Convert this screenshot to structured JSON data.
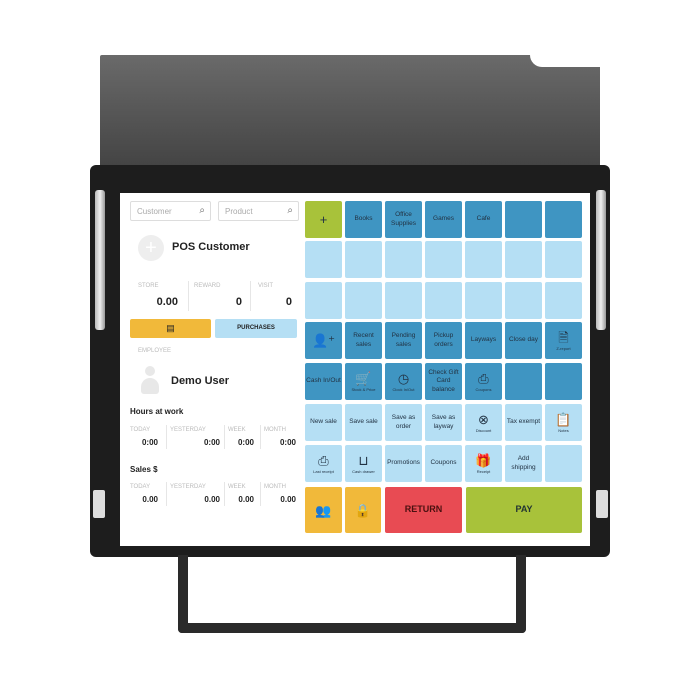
{
  "customer_search": {
    "placeholder": "Customer",
    "icon": "search-icon"
  },
  "product_search": {
    "placeholder": "Product",
    "icon": "search-icon"
  },
  "customer": {
    "name": "POS Customer",
    "store_label": "STORE",
    "store": "0.00",
    "reward_label": "REWARD",
    "reward": "0",
    "visit_label": "VISIT",
    "visit": "0",
    "card_icon": "id-card-icon",
    "purchases": "PURCHASES"
  },
  "employee": {
    "label": "EMPLOYEE",
    "name": "Demo User"
  },
  "hours": {
    "title": "Hours at work",
    "cols": [
      {
        "label": "TODAY",
        "value": "0:00"
      },
      {
        "label": "YESTERDAY",
        "value": "0:00"
      },
      {
        "label": "WEEK",
        "value": "0:00"
      },
      {
        "label": "MONTH",
        "value": "0:00"
      }
    ]
  },
  "sales": {
    "title": "Sales $",
    "cols": [
      {
        "label": "TODAY",
        "value": "0.00"
      },
      {
        "label": "YESTERDAY",
        "value": "0.00"
      },
      {
        "label": "WEEK",
        "value": "0.00"
      },
      {
        "label": "MONTH",
        "value": "0.00"
      }
    ]
  },
  "tiles": [
    {
      "row": 0,
      "col": 0,
      "c": "gr",
      "glyph": "+",
      "icon": "plus-icon"
    },
    {
      "row": 0,
      "col": 1,
      "c": "dk",
      "label": "Books"
    },
    {
      "row": 0,
      "col": 2,
      "c": "dk",
      "label": "Office Supplies"
    },
    {
      "row": 0,
      "col": 3,
      "c": "dk",
      "label": "Games"
    },
    {
      "row": 0,
      "col": 4,
      "c": "dk",
      "label": "Cafe"
    },
    {
      "row": 0,
      "col": 5,
      "c": "dk"
    },
    {
      "row": 0,
      "col": 6,
      "c": "dk"
    },
    {
      "row": 1,
      "col": 0,
      "c": "lt"
    },
    {
      "row": 1,
      "col": 1,
      "c": "lt"
    },
    {
      "row": 1,
      "col": 2,
      "c": "lt"
    },
    {
      "row": 1,
      "col": 3,
      "c": "lt"
    },
    {
      "row": 1,
      "col": 4,
      "c": "lt"
    },
    {
      "row": 1,
      "col": 5,
      "c": "lt"
    },
    {
      "row": 1,
      "col": 6,
      "c": "lt"
    },
    {
      "row": 2,
      "col": 0,
      "c": "lt"
    },
    {
      "row": 2,
      "col": 1,
      "c": "lt"
    },
    {
      "row": 2,
      "col": 2,
      "c": "lt"
    },
    {
      "row": 2,
      "col": 3,
      "c": "lt"
    },
    {
      "row": 2,
      "col": 4,
      "c": "lt"
    },
    {
      "row": 2,
      "col": 5,
      "c": "lt"
    },
    {
      "row": 2,
      "col": 6,
      "c": "lt"
    },
    {
      "row": 3,
      "col": 0,
      "c": "dk",
      "glyph": "👤⁺",
      "icon": "add-customer-icon"
    },
    {
      "row": 3,
      "col": 1,
      "c": "dk",
      "label": "Recent sales"
    },
    {
      "row": 3,
      "col": 2,
      "c": "dk",
      "label": "Pending sales"
    },
    {
      "row": 3,
      "col": 3,
      "c": "dk",
      "label": "Pickup orders"
    },
    {
      "row": 3,
      "col": 4,
      "c": "dk",
      "label": "Layways"
    },
    {
      "row": 3,
      "col": 5,
      "c": "dk",
      "label": "Close day"
    },
    {
      "row": 3,
      "col": 6,
      "c": "dk",
      "glyph": "🗎",
      "icon": "report-icon",
      "sub": "Z-report"
    },
    {
      "row": 4,
      "col": 0,
      "c": "dk",
      "label": "Cash In/Out"
    },
    {
      "row": 4,
      "col": 1,
      "c": "dk",
      "glyph": "🛒",
      "icon": "cart-search-icon",
      "sub": "Stock & Price"
    },
    {
      "row": 4,
      "col": 2,
      "c": "dk",
      "glyph": "◷",
      "icon": "clock-icon",
      "sub": "Clock In/Out"
    },
    {
      "row": 4,
      "col": 3,
      "c": "dk",
      "label": "Check Gift Card balance"
    },
    {
      "row": 4,
      "col": 4,
      "c": "dk",
      "glyph": "⎙",
      "icon": "printer-icon",
      "sub": "Coupons"
    },
    {
      "row": 4,
      "col": 5,
      "c": "dk"
    },
    {
      "row": 4,
      "col": 6,
      "c": "dk"
    },
    {
      "row": 5,
      "col": 0,
      "c": "lt",
      "label": "New sale"
    },
    {
      "row": 5,
      "col": 1,
      "c": "lt",
      "label": "Save sale"
    },
    {
      "row": 5,
      "col": 2,
      "c": "lt",
      "label": "Save as order"
    },
    {
      "row": 5,
      "col": 3,
      "c": "lt",
      "label": "Save as layway"
    },
    {
      "row": 5,
      "col": 4,
      "c": "lt",
      "glyph": "⊗",
      "icon": "discount-icon",
      "sub": "Discount"
    },
    {
      "row": 5,
      "col": 5,
      "c": "lt",
      "label": "Tax exempt"
    },
    {
      "row": 5,
      "col": 6,
      "c": "lt",
      "glyph": "📋",
      "icon": "clipboard-icon",
      "sub": "Notes"
    },
    {
      "row": 6,
      "col": 0,
      "c": "lt",
      "glyph": "⎙",
      "icon": "printer-icon",
      "sub": "Last receipt"
    },
    {
      "row": 6,
      "col": 1,
      "c": "lt",
      "glyph": "⊔",
      "icon": "drawer-icon",
      "sub": "Cash drawer"
    },
    {
      "row": 6,
      "col": 2,
      "c": "lt",
      "label": "Promotions"
    },
    {
      "row": 6,
      "col": 3,
      "c": "lt",
      "label": "Coupons"
    },
    {
      "row": 6,
      "col": 4,
      "c": "lt",
      "glyph": "🎁",
      "icon": "gift-icon",
      "sub": "Receipt"
    },
    {
      "row": 6,
      "col": 5,
      "c": "lt",
      "label": "Add shipping"
    },
    {
      "row": 6,
      "col": 6,
      "c": "lt"
    }
  ],
  "bottom": {
    "users_icon": "users-icon",
    "lock_icon": "lock-icon",
    "return": "RETURN",
    "pay": "PAY"
  }
}
